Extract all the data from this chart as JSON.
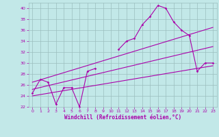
{
  "title": "",
  "xlabel": "Windchill (Refroidissement éolien,°C)",
  "ylabel": "",
  "xlim": [
    -0.5,
    23.5
  ],
  "ylim": [
    22,
    41
  ],
  "yticks": [
    22,
    24,
    26,
    28,
    30,
    32,
    34,
    36,
    38,
    40
  ],
  "xticks": [
    0,
    1,
    2,
    3,
    4,
    5,
    6,
    7,
    8,
    9,
    10,
    11,
    12,
    13,
    14,
    15,
    16,
    17,
    18,
    19,
    20,
    21,
    22,
    23
  ],
  "bg_color": "#c2e8e8",
  "grid_color": "#9bbebe",
  "line_color": "#aa00aa",
  "series": {
    "main": {
      "x": [
        0,
        1,
        2,
        3,
        4,
        5,
        6,
        7,
        8,
        9,
        10,
        11,
        12,
        13,
        14,
        15,
        16,
        17,
        18,
        19,
        20,
        21,
        22,
        23
      ],
      "y": [
        24.5,
        27.0,
        26.5,
        22.5,
        25.5,
        25.5,
        22.0,
        28.5,
        29.0,
        null,
        null,
        32.5,
        34.0,
        34.5,
        37.0,
        38.5,
        40.5,
        40.0,
        37.5,
        36.0,
        35.0,
        28.5,
        30.0,
        30.0
      ]
    },
    "upper_trend": {
      "x": [
        0,
        23
      ],
      "y": [
        26.5,
        36.5
      ]
    },
    "lower_trend": {
      "x": [
        0,
        23
      ],
      "y": [
        24.0,
        29.5
      ]
    },
    "mid_trend": {
      "x": [
        0,
        23
      ],
      "y": [
        25.2,
        33.0
      ]
    }
  }
}
